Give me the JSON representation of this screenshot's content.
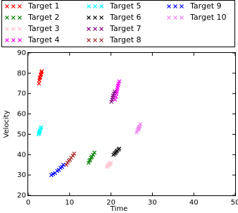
{
  "chart_data": {
    "type": "scatter",
    "x_label": "Time",
    "y_label": "Velocity",
    "xlim": [
      0,
      50
    ],
    "xticks": [
      0,
      10,
      20,
      30,
      40,
      50
    ],
    "ylim": [
      20,
      90
    ],
    "yticks": [
      20,
      30,
      40,
      50,
      60,
      70,
      80,
      90
    ],
    "legend_position": "top",
    "series": [
      {
        "name": "Target 1",
        "color": "#ff0000",
        "x": [
          2.6,
          2.7,
          2.8,
          2.9,
          3.0,
          3.1,
          3.2,
          3.3
        ],
        "values": [
          75,
          76.5,
          77.5,
          78,
          79,
          79.5,
          80.5,
          81
        ]
      },
      {
        "name": "Target 2",
        "color": "#008000",
        "x": [
          14.6,
          14.8,
          15.0,
          15.2,
          15.4,
          15.7,
          16.0
        ],
        "values": [
          36,
          37,
          37.5,
          38.5,
          39,
          40,
          41
        ]
      },
      {
        "name": "Target 3",
        "color": "#ffc0cb",
        "x": [
          19.0,
          19.2,
          19.4,
          19.6,
          19.8,
          20.0
        ],
        "values": [
          34,
          34.5,
          35,
          35.3,
          35.7,
          36
        ]
      },
      {
        "name": "Target 4",
        "color": "#ff00ff",
        "x": [
          21.0,
          21.2,
          21.3,
          21.4,
          21.5,
          21.6,
          21.7,
          21.8,
          22.0
        ],
        "values": [
          67,
          68.5,
          70,
          71,
          72,
          73,
          74,
          75,
          76
        ]
      },
      {
        "name": "Target 5",
        "color": "#00ffff",
        "x": [
          2.5,
          2.6,
          2.7,
          2.8,
          2.9,
          3.0,
          3.2
        ],
        "values": [
          50,
          50.5,
          51,
          51.5,
          52,
          53,
          53.5
        ]
      },
      {
        "name": "Target 6",
        "color": "#000000",
        "x": [
          20.6,
          20.9,
          21.1,
          21.3,
          21.5,
          21.8,
          22.0
        ],
        "values": [
          40,
          40.5,
          41,
          41.5,
          42,
          42.5,
          43
        ]
      },
      {
        "name": "Target 7",
        "color": "#800080",
        "x": [
          20.1,
          20.3,
          20.4,
          20.5,
          20.7,
          20.9
        ],
        "values": [
          66,
          67,
          68,
          69,
          70,
          71
        ]
      },
      {
        "name": "Target 8",
        "color": "#a52a2a",
        "x": [
          9.2,
          9.5,
          9.8,
          10.1,
          10.4,
          10.8,
          11.1
        ],
        "values": [
          35,
          36,
          37,
          37.5,
          38.5,
          39.5,
          40.5
        ]
      },
      {
        "name": "Target 9",
        "color": "#0000ff",
        "x": [
          5.6,
          6.0,
          6.5,
          7.0,
          7.4,
          7.8,
          8.2,
          8.5
        ],
        "values": [
          30,
          30.5,
          31,
          32,
          32.5,
          33.5,
          34,
          35
        ]
      },
      {
        "name": "Target 10",
        "color": "#ee82ee",
        "x": [
          26.2,
          26.4,
          26.6,
          26.7,
          26.8,
          27.0,
          27.1
        ],
        "values": [
          51,
          52,
          52.5,
          53,
          53.5,
          54,
          55
        ]
      }
    ]
  }
}
